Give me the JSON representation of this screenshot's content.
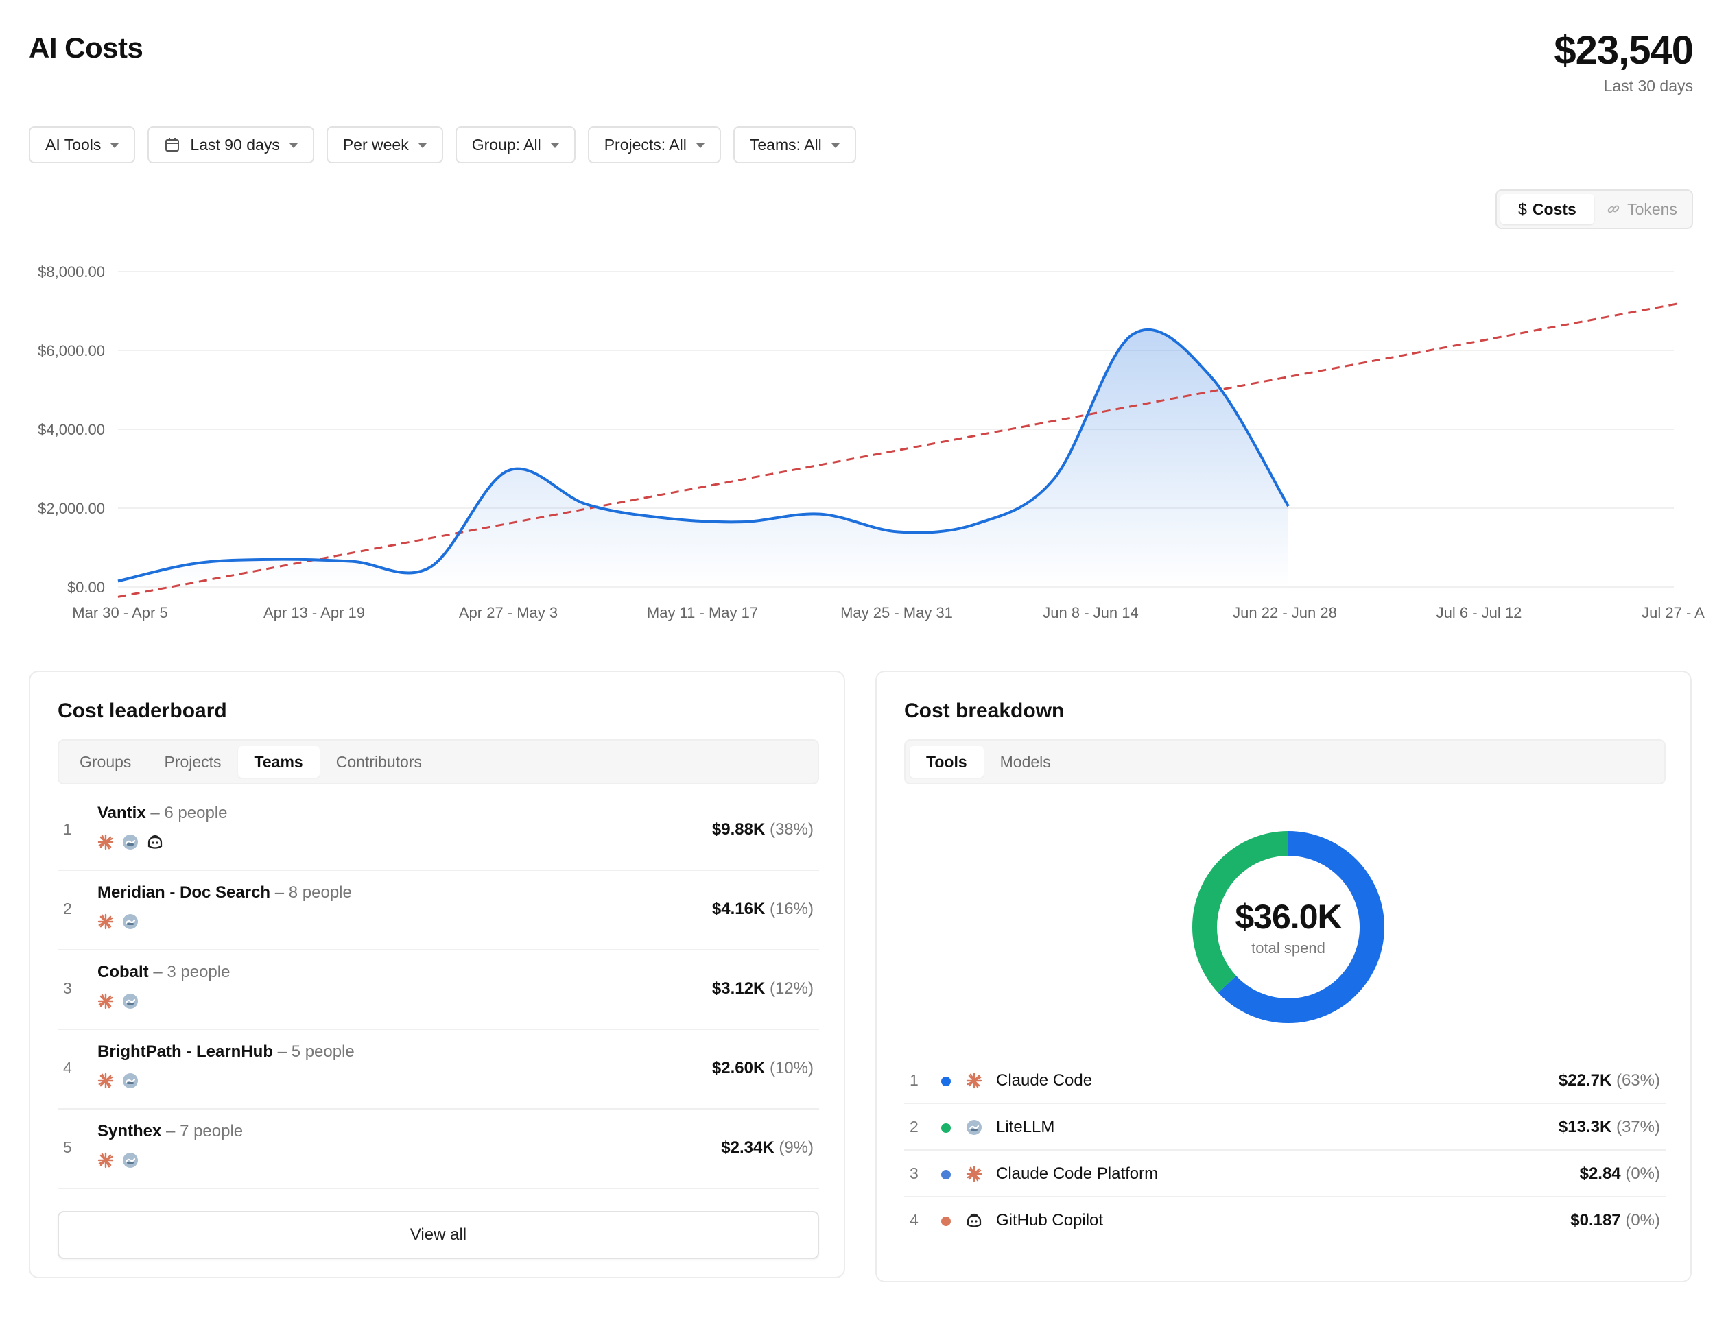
{
  "header": {
    "title": "AI Costs",
    "total": "$23,540",
    "total_period": "Last 30 days"
  },
  "filters": [
    {
      "label": "AI Tools",
      "icon": null
    },
    {
      "label": "Last 90 days",
      "icon": "calendar-icon"
    },
    {
      "label": "Per week",
      "icon": null
    },
    {
      "label": "Group: All",
      "icon": null
    },
    {
      "label": "Projects: All",
      "icon": null
    },
    {
      "label": "Teams: All",
      "icon": null
    }
  ],
  "metric_toggle": {
    "costs": "Costs",
    "tokens": "Tokens",
    "active": "costs"
  },
  "chart_data": {
    "type": "area",
    "y_ticks": [
      "$8,000.00",
      "$6,000.00",
      "$4,000.00",
      "$2,000.00",
      "$0.00"
    ],
    "ylim": [
      0,
      8000
    ],
    "x_tick_labels": [
      "Mar 30 - Apr 5",
      "Apr 13 - Apr 19",
      "Apr 27 - May 3",
      "May 11 - May 17",
      "May 25 - May 31",
      "Jun 8 - Jun 14",
      "Jun 22 - Jun 28",
      "Jul 6 - Jul 12",
      "Jul 27 - A"
    ],
    "grid": true,
    "series": [
      {
        "style": "solid-area",
        "color": "#1d6fdc",
        "values": [
          150,
          600,
          700,
          650,
          500,
          2950,
          2100,
          1750,
          1650,
          1850,
          1400,
          1600,
          2750,
          6400,
          5350,
          2050
        ]
      },
      {
        "style": "dashed-trend",
        "color": "#d04545",
        "values": [
          -250,
          7200
        ]
      }
    ]
  },
  "leaderboard": {
    "title": "Cost leaderboard",
    "tabs": [
      "Groups",
      "Projects",
      "Teams",
      "Contributors"
    ],
    "active_tab": "Teams",
    "rows": [
      {
        "rank": "1",
        "name": "Vantix",
        "people": "– 6 people",
        "value": "$9.88K",
        "pct": "(38%)",
        "icons": [
          "claude-icon",
          "litellm-icon",
          "copilot-icon"
        ]
      },
      {
        "rank": "2",
        "name": "Meridian - Doc Search",
        "people": "– 8 people",
        "value": "$4.16K",
        "pct": "(16%)",
        "icons": [
          "claude-icon",
          "litellm-icon"
        ]
      },
      {
        "rank": "3",
        "name": "Cobalt",
        "people": "– 3 people",
        "value": "$3.12K",
        "pct": "(12%)",
        "icons": [
          "claude-icon",
          "litellm-icon"
        ]
      },
      {
        "rank": "4",
        "name": "BrightPath - LearnHub",
        "people": "– 5 people",
        "value": "$2.60K",
        "pct": "(10%)",
        "icons": [
          "claude-icon",
          "litellm-icon"
        ]
      },
      {
        "rank": "5",
        "name": "Synthex",
        "people": "– 7 people",
        "value": "$2.34K",
        "pct": "(9%)",
        "icons": [
          "claude-icon",
          "litellm-icon"
        ]
      }
    ],
    "view_all": "View all"
  },
  "breakdown": {
    "title": "Cost breakdown",
    "tabs": [
      "Tools",
      "Models"
    ],
    "active_tab": "Tools",
    "donut": {
      "value": "$36.0K",
      "label": "total spend",
      "segments": [
        {
          "name": "Claude Code",
          "share": 0.63,
          "color": "#1a6ee8"
        },
        {
          "name": "LiteLLM",
          "share": 0.37,
          "color": "#1bb36a"
        }
      ]
    },
    "rows": [
      {
        "rank": "1",
        "name": "Claude Code",
        "value": "$22.7K",
        "pct": "(63%)",
        "dot": "#1a6ee8",
        "icon": "claude-icon"
      },
      {
        "rank": "2",
        "name": "LiteLLM",
        "value": "$13.3K",
        "pct": "(37%)",
        "dot": "#1bb36a",
        "icon": "litellm-icon"
      },
      {
        "rank": "3",
        "name": "Claude Code Platform",
        "value": "$2.84",
        "pct": "(0%)",
        "dot": "#4a7fd8",
        "icon": "claude-icon"
      },
      {
        "rank": "4",
        "name": "GitHub Copilot",
        "value": "$0.187",
        "pct": "(0%)",
        "dot": "#d9785a",
        "icon": "copilot-icon"
      }
    ]
  }
}
